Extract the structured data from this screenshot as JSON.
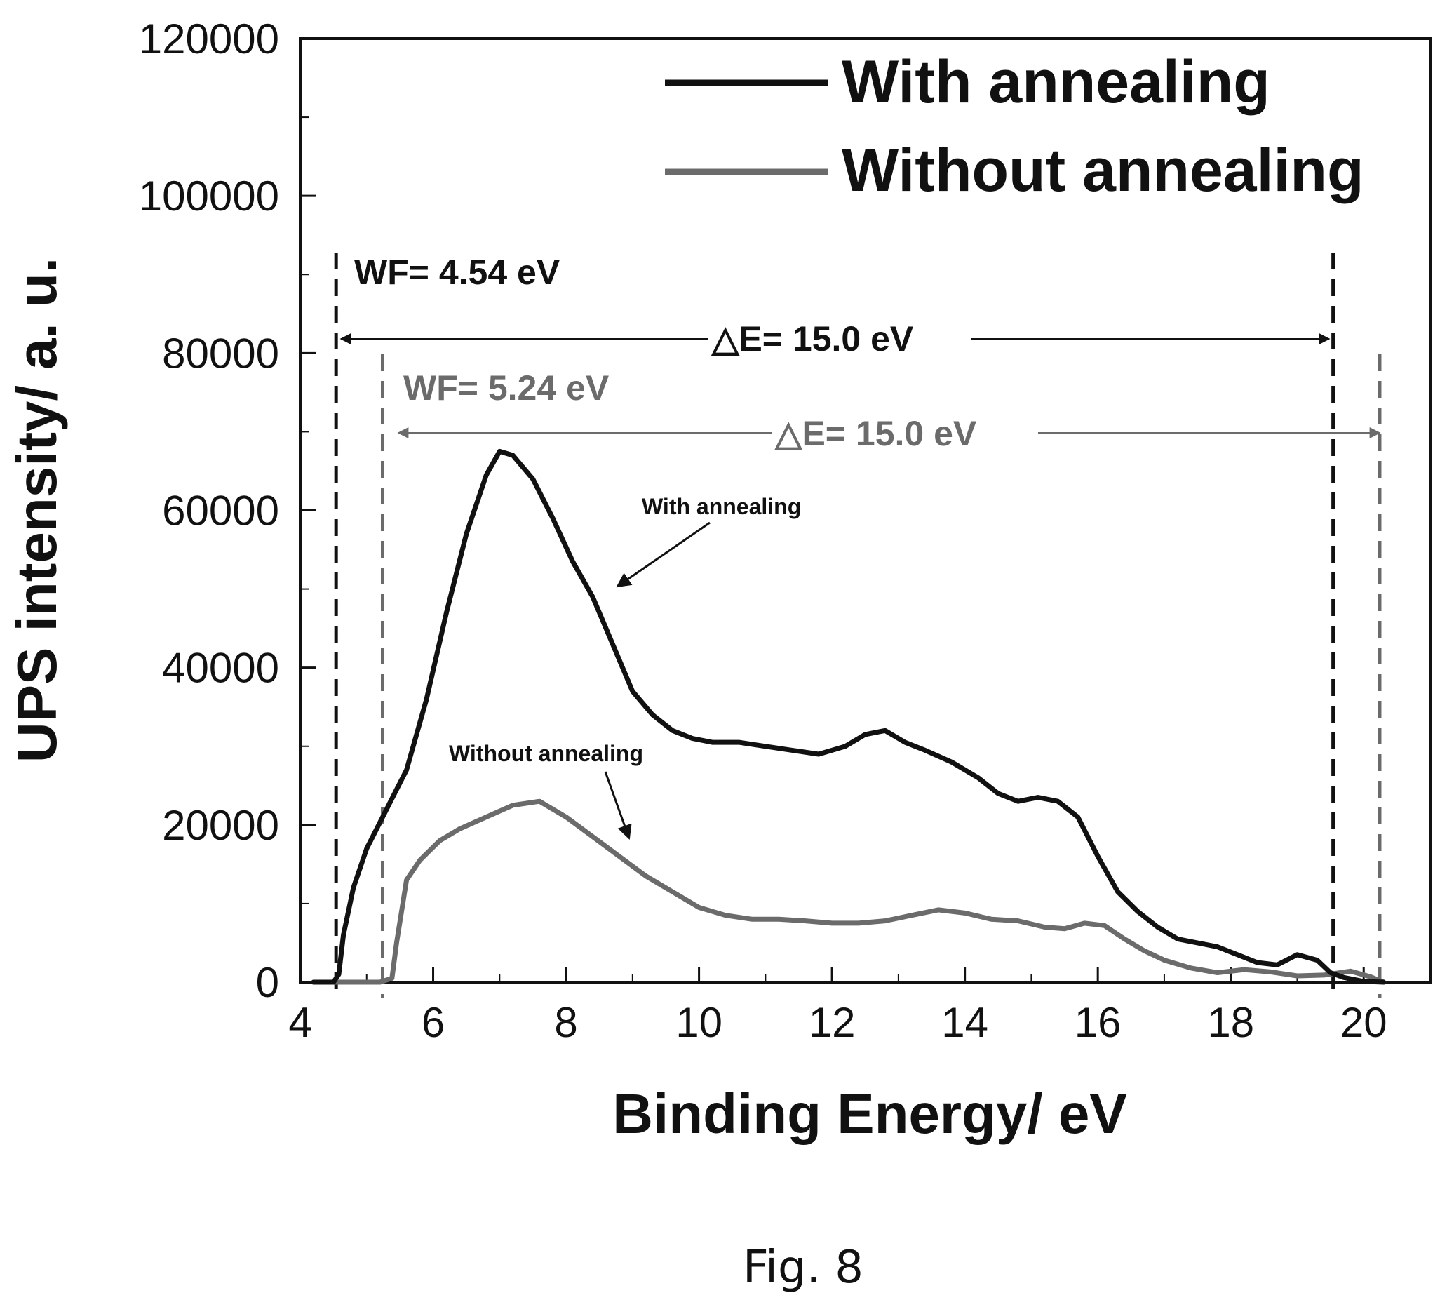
{
  "chart_data": {
    "type": "line",
    "xlabel": "Binding Energy/ eV",
    "ylabel": "UPS intensity/ a. u.",
    "xlim": [
      4,
      21
    ],
    "ylim": [
      0,
      120000
    ],
    "x_ticks": [
      4,
      6,
      8,
      10,
      12,
      14,
      16,
      18,
      20
    ],
    "y_ticks": [
      0,
      20000,
      40000,
      60000,
      80000,
      100000,
      120000
    ],
    "grid": false,
    "legend_position": "top-right",
    "series": [
      {
        "name": "With annealing",
        "color": "#111111",
        "x": [
          4.2,
          4.5,
          4.58,
          4.65,
          4.8,
          5.0,
          5.3,
          5.6,
          5.9,
          6.2,
          6.5,
          6.8,
          7.0,
          7.2,
          7.5,
          7.8,
          8.1,
          8.4,
          8.7,
          9.0,
          9.3,
          9.6,
          9.9,
          10.2,
          10.6,
          11.0,
          11.4,
          11.8,
          12.2,
          12.5,
          12.8,
          13.1,
          13.4,
          13.8,
          14.2,
          14.5,
          14.8,
          15.1,
          15.4,
          15.7,
          16.0,
          16.3,
          16.6,
          16.9,
          17.2,
          17.5,
          17.8,
          18.1,
          18.4,
          18.7,
          19.0,
          19.3,
          19.5,
          19.7,
          20.0,
          20.3
        ],
        "y": [
          0,
          0,
          1000,
          6000,
          12000,
          17000,
          22000,
          27000,
          36000,
          47000,
          57000,
          64500,
          67500,
          67000,
          64000,
          59000,
          53500,
          49000,
          43000,
          37000,
          34000,
          32000,
          31000,
          30500,
          30500,
          30000,
          29500,
          29000,
          30000,
          31500,
          32000,
          30500,
          29500,
          28000,
          26000,
          24000,
          23000,
          23500,
          23000,
          21000,
          16000,
          11500,
          9000,
          7000,
          5500,
          5000,
          4500,
          3500,
          2500,
          2200,
          3500,
          2800,
          1200,
          600,
          100,
          0
        ]
      },
      {
        "name": "Without annealing",
        "color": "#6b6b6b",
        "x": [
          4.2,
          5.2,
          5.38,
          5.45,
          5.6,
          5.8,
          6.1,
          6.4,
          6.8,
          7.2,
          7.6,
          8.0,
          8.4,
          8.8,
          9.2,
          9.6,
          10.0,
          10.4,
          10.8,
          11.2,
          11.6,
          12.0,
          12.4,
          12.8,
          13.2,
          13.6,
          14.0,
          14.4,
          14.8,
          15.2,
          15.5,
          15.8,
          16.1,
          16.4,
          16.7,
          17.0,
          17.4,
          17.8,
          18.2,
          18.6,
          19.0,
          19.4,
          19.8,
          20.1,
          20.3
        ],
        "y": [
          0,
          0,
          500,
          5000,
          13000,
          15500,
          18000,
          19500,
          21000,
          22500,
          23000,
          21000,
          18500,
          16000,
          13500,
          11500,
          9500,
          8500,
          8000,
          8000,
          7800,
          7500,
          7500,
          7800,
          8500,
          9200,
          8800,
          8000,
          7800,
          7000,
          6800,
          7500,
          7200,
          5500,
          4000,
          2800,
          1800,
          1200,
          1600,
          1300,
          800,
          900,
          1400,
          700,
          0
        ]
      }
    ],
    "annotations": {
      "wf1": "WF= 4.54 eV",
      "de1": "△E= 15.0 eV",
      "wf2": "WF= 5.24 eV",
      "de2": "△E= 15.0 eV",
      "callout_with": "With annealing",
      "callout_without": "Without annealing",
      "cutoff_lines_ev": [
        4.54,
        5.24,
        19.54,
        20.24
      ]
    },
    "caption": "Fig. 8"
  }
}
